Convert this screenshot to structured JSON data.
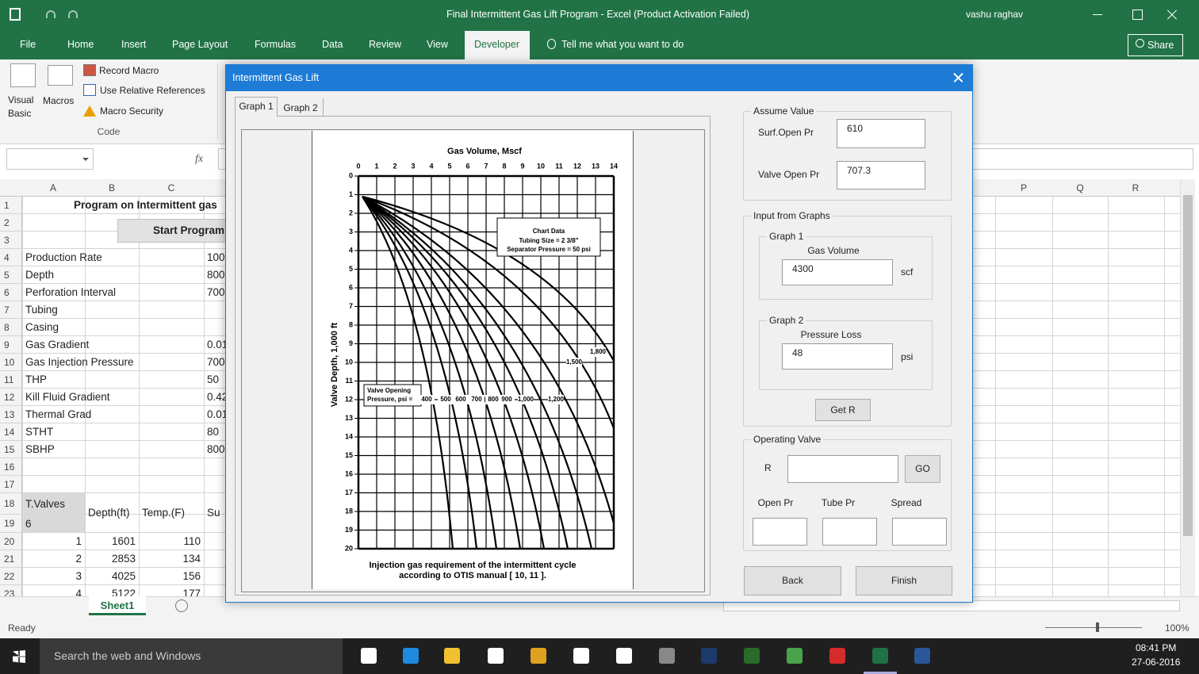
{
  "window": {
    "title": "Final Intermittent Gas Lift Program - Excel (Product Activation Failed)",
    "user": "vashu raghav"
  },
  "ribbon": {
    "tabs": [
      "File",
      "Home",
      "Insert",
      "Page Layout",
      "Formulas",
      "Data",
      "Review",
      "View",
      "Developer"
    ],
    "tell_me": "Tell me what you want to do",
    "share": "Share",
    "visual_basic": "Visual Basic",
    "macros": "Macros",
    "record_macro": "Record Macro",
    "relative_references": "Use Relative References",
    "macro_security": "Macro Security",
    "group_label": "Code"
  },
  "formula_bar": {
    "function_label": "fx"
  },
  "sheet": {
    "columns": [
      "A",
      "B",
      "C"
    ],
    "more_columns": [
      "P",
      "Q",
      "R"
    ],
    "row_numbers": [
      1,
      2,
      3,
      4,
      5,
      6,
      7,
      8,
      9,
      10,
      11,
      12,
      13,
      14,
      15,
      16,
      17,
      18,
      19,
      20,
      21,
      22,
      23
    ],
    "title": "Program on Intermittent gas",
    "button": "Start Program",
    "rows": {
      "4": [
        "Production Rate",
        null,
        null,
        100
      ],
      "5": [
        "Depth",
        null,
        null,
        800
      ],
      "6": [
        "Perforation Interval",
        null,
        null,
        700
      ],
      "7": [
        "Tubing"
      ],
      "8": [
        "Casing"
      ],
      "9": [
        "Gas Gradient",
        null,
        null,
        0.01
      ],
      "10": [
        "Gas Injection Pressure",
        null,
        null,
        700
      ],
      "11": [
        "THP",
        null,
        null,
        50
      ],
      "12": [
        "Kill Fluid Gradient",
        null,
        null,
        0.42
      ],
      "13": [
        "Thermal Grad",
        null,
        null,
        0.01
      ],
      "14": [
        "STHT",
        null,
        null,
        80
      ],
      "15": [
        "SBHP",
        null,
        null,
        800
      ],
      "18": [
        "T.Valves",
        "Depth(ft)",
        "Temp.(F)",
        "Su"
      ],
      "19": [
        "6"
      ],
      "20": [
        1,
        1601,
        110
      ],
      "21": [
        2,
        2853,
        134
      ],
      "22": [
        3,
        4025,
        156
      ],
      "23": [
        4,
        5122,
        177
      ]
    }
  },
  "sheet_tab": "Sheet1",
  "status": {
    "ready": "Ready",
    "zoom": "100%"
  },
  "taskbar": {
    "search": "Search the web and Windows",
    "time": "08:41 PM",
    "date": "27-06-2016"
  },
  "dialog": {
    "title": "Intermittent Gas Lift",
    "tabs": [
      "Graph 1",
      "Graph 2"
    ],
    "graph": {
      "x_title": "Gas Volume, Mscf",
      "y_title": "Valve Depth, 1,000 ft",
      "xticks": [
        0,
        1,
        2,
        3,
        4,
        5,
        6,
        7,
        8,
        9,
        10,
        11,
        12,
        13,
        14
      ],
      "yticks": [
        0,
        1,
        2,
        3,
        4,
        5,
        6,
        7,
        8,
        9,
        10,
        11,
        12,
        13,
        14,
        15,
        16,
        17,
        18,
        19,
        20
      ],
      "legend": {
        "title": "Chart Data",
        "lines": [
          "Tubing Size = 2 3/8\"",
          "Separator Pressure = 50 psi"
        ]
      },
      "pressure_label": [
        "Valve Opening",
        "Pressure, psi ="
      ],
      "pressures": [
        "400",
        "500",
        "600",
        "700",
        "800",
        "900",
        "1,000",
        "1,200",
        "1,500",
        "1,800"
      ],
      "caption": [
        "Injection gas requirement of the intermittent cycle",
        "according to OTIS manual [ 10, 11 ]."
      ]
    },
    "assume_value": {
      "label": "Assume Value",
      "surf_open_pr": {
        "label": "Surf.Open Pr",
        "value": 610
      },
      "valve_open_pr": {
        "label": "Valve Open Pr",
        "value": 707.3
      }
    },
    "input_from_graphs": {
      "label": "Input from Graphs",
      "graph1": {
        "label": "Graph 1",
        "field": "Gas Volume",
        "value": 4300,
        "unit": "scf"
      },
      "graph2": {
        "label": "Graph 2",
        "field": "Pressure Loss",
        "value": 48,
        "unit": "psi"
      },
      "button": "Get R"
    },
    "operating_valve": {
      "label": "Operating Valve",
      "r_label": "R",
      "go": "GO",
      "open_pr": "Open Pr",
      "tube_pr": "Tube Pr",
      "spread": "Spread"
    },
    "back": "Back",
    "finish": "Finish"
  }
}
